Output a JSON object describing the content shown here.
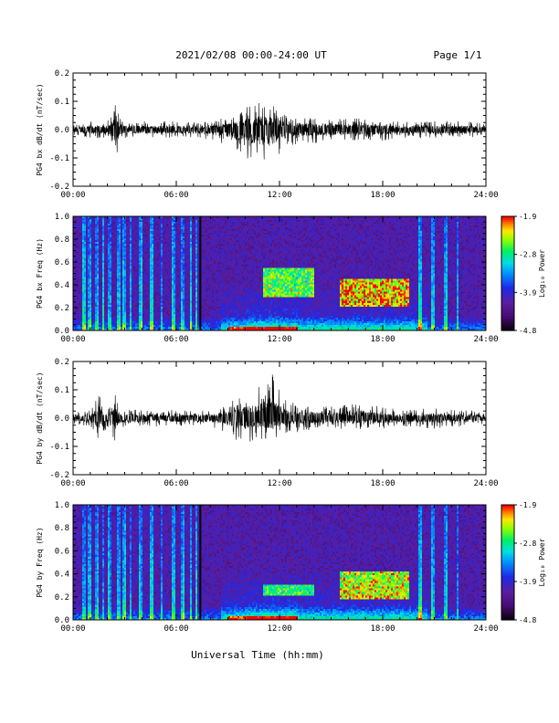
{
  "header": {
    "title": "2021/02/08  00:00-24:00 UT",
    "page": "Page 1/1"
  },
  "footer": {
    "xlabel": "Universal Time (hh:mm)"
  },
  "colors": {
    "trace": "#000000",
    "colormap": [
      "#000000",
      "#5a1a8a",
      "#1a1aff",
      "#00c8ff",
      "#00ff40",
      "#ffff00",
      "#ff8000",
      "#ff0000"
    ]
  },
  "chart_data": [
    {
      "type": "line",
      "ylabel": "PG4 bx dB/dt (nT/sec)",
      "xlim": [
        0,
        24
      ],
      "ylim": [
        -0.2,
        0.2
      ],
      "x_ticks": [
        "00:00",
        "06:00",
        "12:00",
        "18:00",
        "24:00"
      ],
      "y_ticks": [
        "-0.2",
        "-0.1",
        "0.0",
        "0.1",
        "0.2"
      ],
      "envelope": {
        "hours": [
          0,
          1,
          2,
          2.5,
          2.7,
          3,
          4,
          5,
          6,
          7,
          7.5,
          8,
          9,
          9.5,
          10,
          10.5,
          11,
          11.5,
          12,
          12.5,
          13,
          14,
          15,
          16,
          17,
          18,
          19,
          20,
          21,
          22,
          23,
          24
        ],
        "max": [
          0.02,
          0.03,
          0.03,
          0.1,
          0.04,
          0.03,
          0.03,
          0.03,
          0.03,
          0.03,
          0.03,
          0.03,
          0.05,
          0.06,
          0.08,
          0.09,
          0.11,
          0.1,
          0.08,
          0.05,
          0.05,
          0.04,
          0.04,
          0.04,
          0.04,
          0.03,
          0.03,
          0.03,
          0.03,
          0.03,
          0.03,
          0.02
        ],
        "min": [
          -0.02,
          -0.03,
          -0.03,
          -0.13,
          -0.04,
          -0.03,
          -0.03,
          -0.03,
          -0.03,
          -0.03,
          -0.03,
          -0.04,
          -0.06,
          -0.07,
          -0.1,
          -0.11,
          -0.14,
          -0.12,
          -0.09,
          -0.06,
          -0.05,
          -0.05,
          -0.04,
          -0.04,
          -0.04,
          -0.04,
          -0.03,
          -0.03,
          -0.03,
          -0.03,
          -0.03,
          -0.02
        ]
      }
    },
    {
      "type": "heatmap",
      "ylabel": "PG4 bx Freq (Hz)",
      "colorbar_label": "Log₁₀ Power",
      "colorbar_ticks": [
        "-1.9",
        "-2.8",
        "-3.9",
        "-4.8"
      ],
      "colorbar_range": [
        -4.8,
        -1.9
      ],
      "xlim": [
        0,
        24
      ],
      "ylim": [
        0.0,
        1.0
      ],
      "x_ticks": [
        "00:00",
        "06:00",
        "12:00",
        "18:00",
        "24:00"
      ],
      "y_ticks": [
        "0.0",
        "0.2",
        "0.4",
        "0.6",
        "0.8",
        "1.0"
      ],
      "data_gap_hour": 7.4,
      "bursts": [
        {
          "t0": 11.0,
          "t1": 14.0,
          "f0": 0.28,
          "f1": 0.55,
          "level": 0.6
        },
        {
          "t0": 15.5,
          "t1": 19.5,
          "f0": 0.2,
          "f1": 0.45,
          "level": 0.8
        }
      ]
    },
    {
      "type": "line",
      "ylabel": "PG4 by dB/dt (nT/sec)",
      "xlim": [
        0,
        24
      ],
      "ylim": [
        -0.2,
        0.2
      ],
      "x_ticks": [
        "00:00",
        "06:00",
        "12:00",
        "18:00",
        "24:00"
      ],
      "y_ticks": [
        "-0.2",
        "-0.1",
        "0.0",
        "0.1",
        "0.2"
      ],
      "envelope": {
        "hours": [
          0,
          1,
          1.5,
          2,
          2.5,
          2.7,
          3,
          4,
          5,
          6,
          7,
          8,
          9,
          9.5,
          10,
          10.5,
          11,
          11.5,
          12,
          12.5,
          13,
          14,
          15,
          16,
          17,
          18,
          19,
          20,
          21,
          22,
          23,
          24
        ],
        "max": [
          0.02,
          0.03,
          0.08,
          0.03,
          0.09,
          0.04,
          0.03,
          0.03,
          0.03,
          0.03,
          0.03,
          0.03,
          0.05,
          0.07,
          0.09,
          0.1,
          0.12,
          0.17,
          0.1,
          0.06,
          0.05,
          0.05,
          0.04,
          0.05,
          0.05,
          0.04,
          0.03,
          0.03,
          0.04,
          0.03,
          0.03,
          0.02
        ],
        "min": [
          -0.02,
          -0.03,
          -0.08,
          -0.03,
          -0.09,
          -0.04,
          -0.03,
          -0.03,
          -0.03,
          -0.03,
          -0.03,
          -0.03,
          -0.06,
          -0.08,
          -0.09,
          -0.08,
          -0.08,
          -0.1,
          -0.06,
          -0.05,
          -0.05,
          -0.04,
          -0.04,
          -0.04,
          -0.04,
          -0.04,
          -0.03,
          -0.03,
          -0.04,
          -0.03,
          -0.03,
          -0.02
        ]
      }
    },
    {
      "type": "heatmap",
      "ylabel": "PG4 by Freq (Hz)",
      "colorbar_label": "Log₁₀ Power",
      "colorbar_ticks": [
        "-1.9",
        "-2.8",
        "-3.9",
        "-4.8"
      ],
      "colorbar_range": [
        -4.8,
        -1.9
      ],
      "xlim": [
        0,
        24
      ],
      "ylim": [
        0.0,
        1.0
      ],
      "x_ticks": [
        "00:00",
        "06:00",
        "12:00",
        "18:00",
        "24:00"
      ],
      "y_ticks": [
        "0.0",
        "0.2",
        "0.4",
        "0.6",
        "0.8",
        "1.0"
      ],
      "data_gap_hour": 7.4,
      "bursts": [
        {
          "t0": 11.0,
          "t1": 14.0,
          "f0": 0.2,
          "f1": 0.3,
          "level": 0.5
        },
        {
          "t0": 15.5,
          "t1": 19.5,
          "f0": 0.18,
          "f1": 0.42,
          "level": 0.7
        }
      ]
    }
  ]
}
